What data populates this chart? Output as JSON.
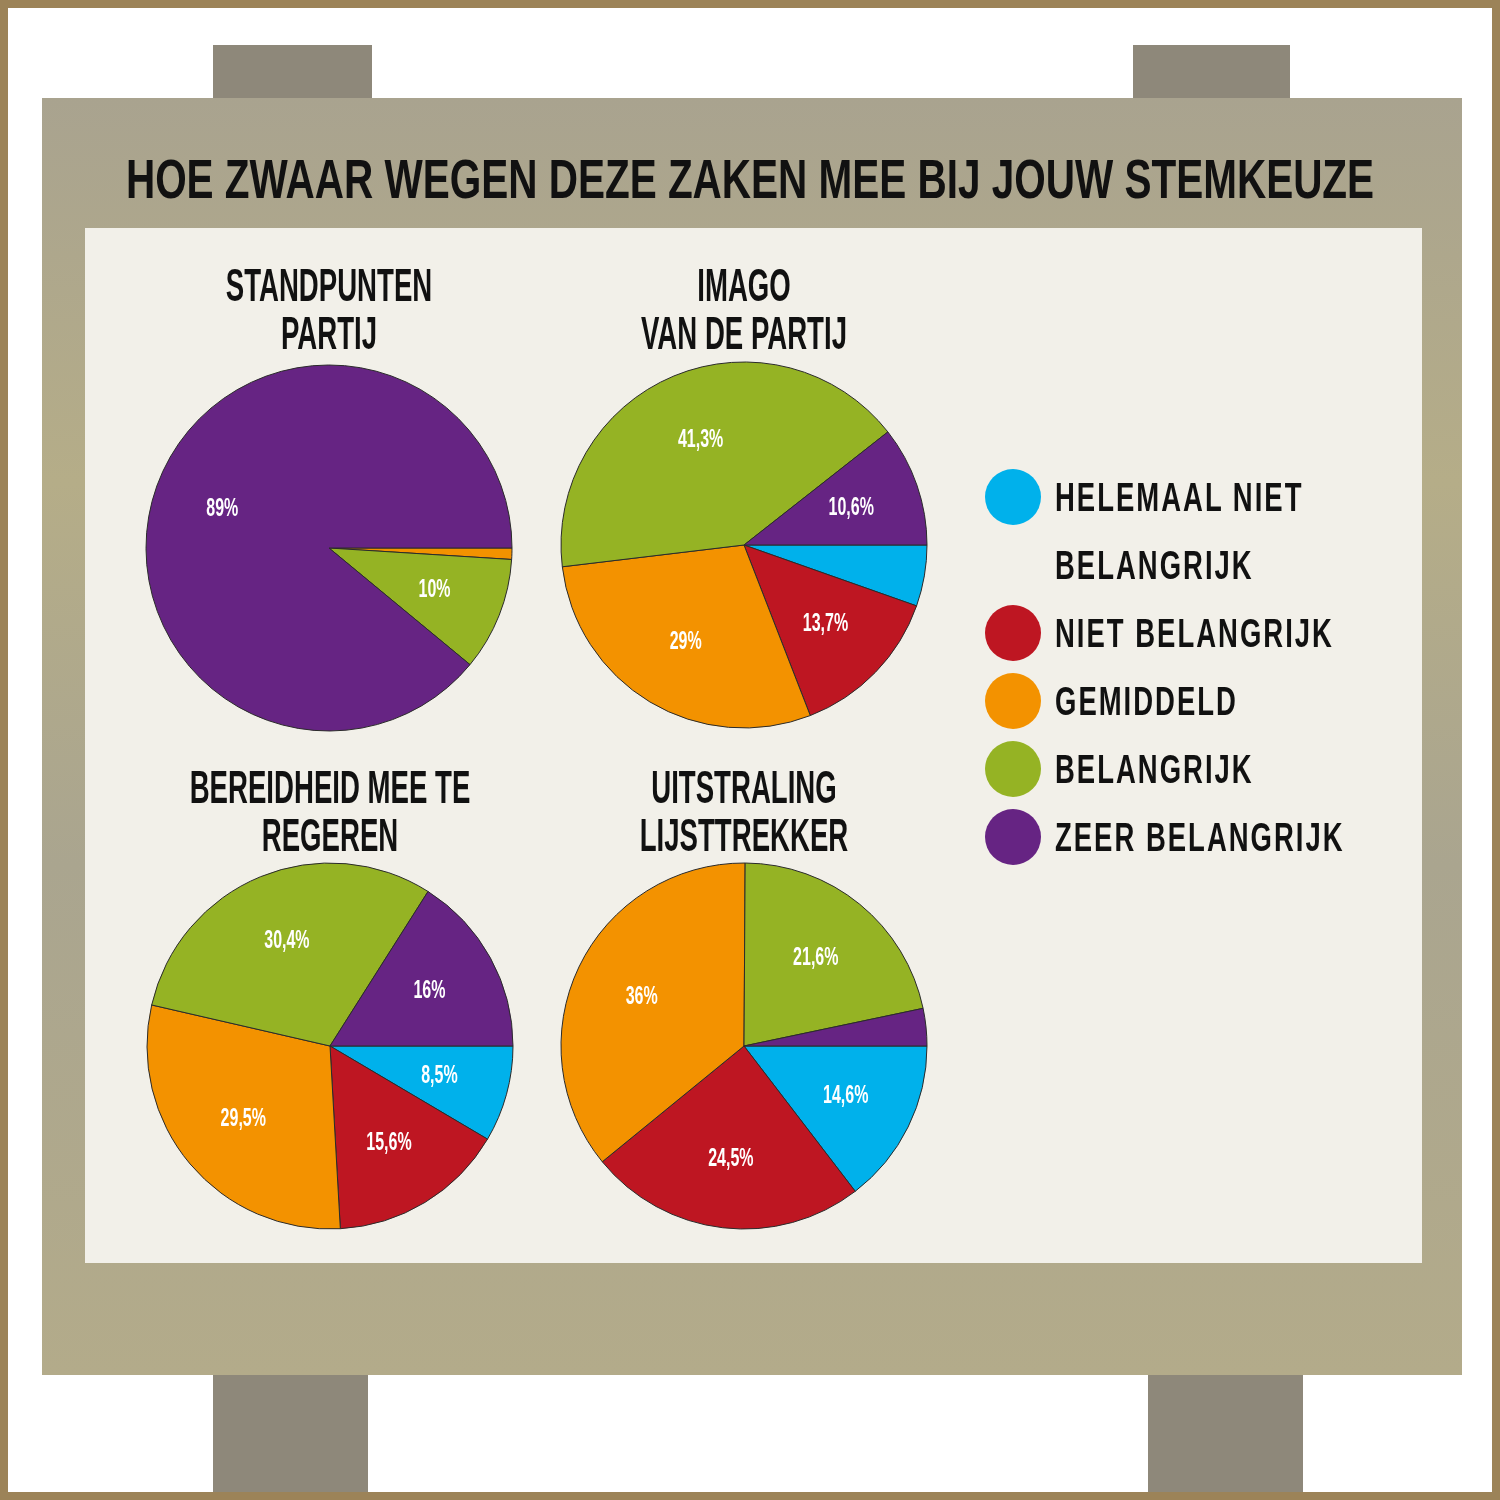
{
  "chart_data": [
    {
      "type": "pie",
      "title": "STANDPUNTEN\nPARTIJ",
      "annotations": [
        "HOE ZWAAR WEGEN DEZE ZAKEN MEE BIJ JOUW STEMKEUZE"
      ],
      "categories": [
        null,
        null,
        null
      ],
      "values": [
        1,
        10,
        89
      ],
      "colors": [
        "#f39200",
        "#95b324",
        "#662483"
      ],
      "value_labels": [
        null,
        "10%",
        "89%"
      ]
    },
    {
      "type": "pie",
      "title": "IMAGO\nVAN DE PARTIJ",
      "categories": [
        "HELEMAAL NIET BELANGRIJK",
        "NIET BELANGRIJK",
        "GEMIDDELD",
        "BELANGRIJK",
        "ZEER BELANGRIJK"
      ],
      "values": [
        5.4,
        13.7,
        29,
        41.3,
        10.6
      ],
      "colors": [
        "#00b1eb",
        "#be1622",
        "#f39200",
        "#95b324",
        "#662483"
      ],
      "value_labels": [
        null,
        "13,7%",
        "29%",
        "41,3%",
        "10,6%"
      ],
      "legend": "right"
    },
    {
      "type": "pie",
      "title": "BEREIDHEID MEE TE\nREGEREN",
      "categories": [
        null,
        null,
        null,
        null,
        null
      ],
      "values": [
        8.5,
        15.6,
        29.5,
        30.4,
        16
      ],
      "colors": [
        "#00b1eb",
        "#be1622",
        "#f39200",
        "#95b324",
        "#662483"
      ],
      "value_labels": [
        "8,5%",
        "15,6%",
        "29,5%",
        "30,4%",
        "16%"
      ]
    },
    {
      "type": "pie",
      "title": "UITSTRALING\nLIJSTTREKKER",
      "categories": [
        null,
        null,
        null,
        null,
        null
      ],
      "values": [
        14.6,
        24.5,
        36,
        21.6,
        3.3
      ],
      "colors": [
        "#00b1eb",
        "#be1622",
        "#f39200",
        "#95b324",
        "#662483"
      ],
      "value_labels": [
        "14,6%",
        "24,5%",
        "36%",
        "21,6%",
        null
      ]
    }
  ]
}
